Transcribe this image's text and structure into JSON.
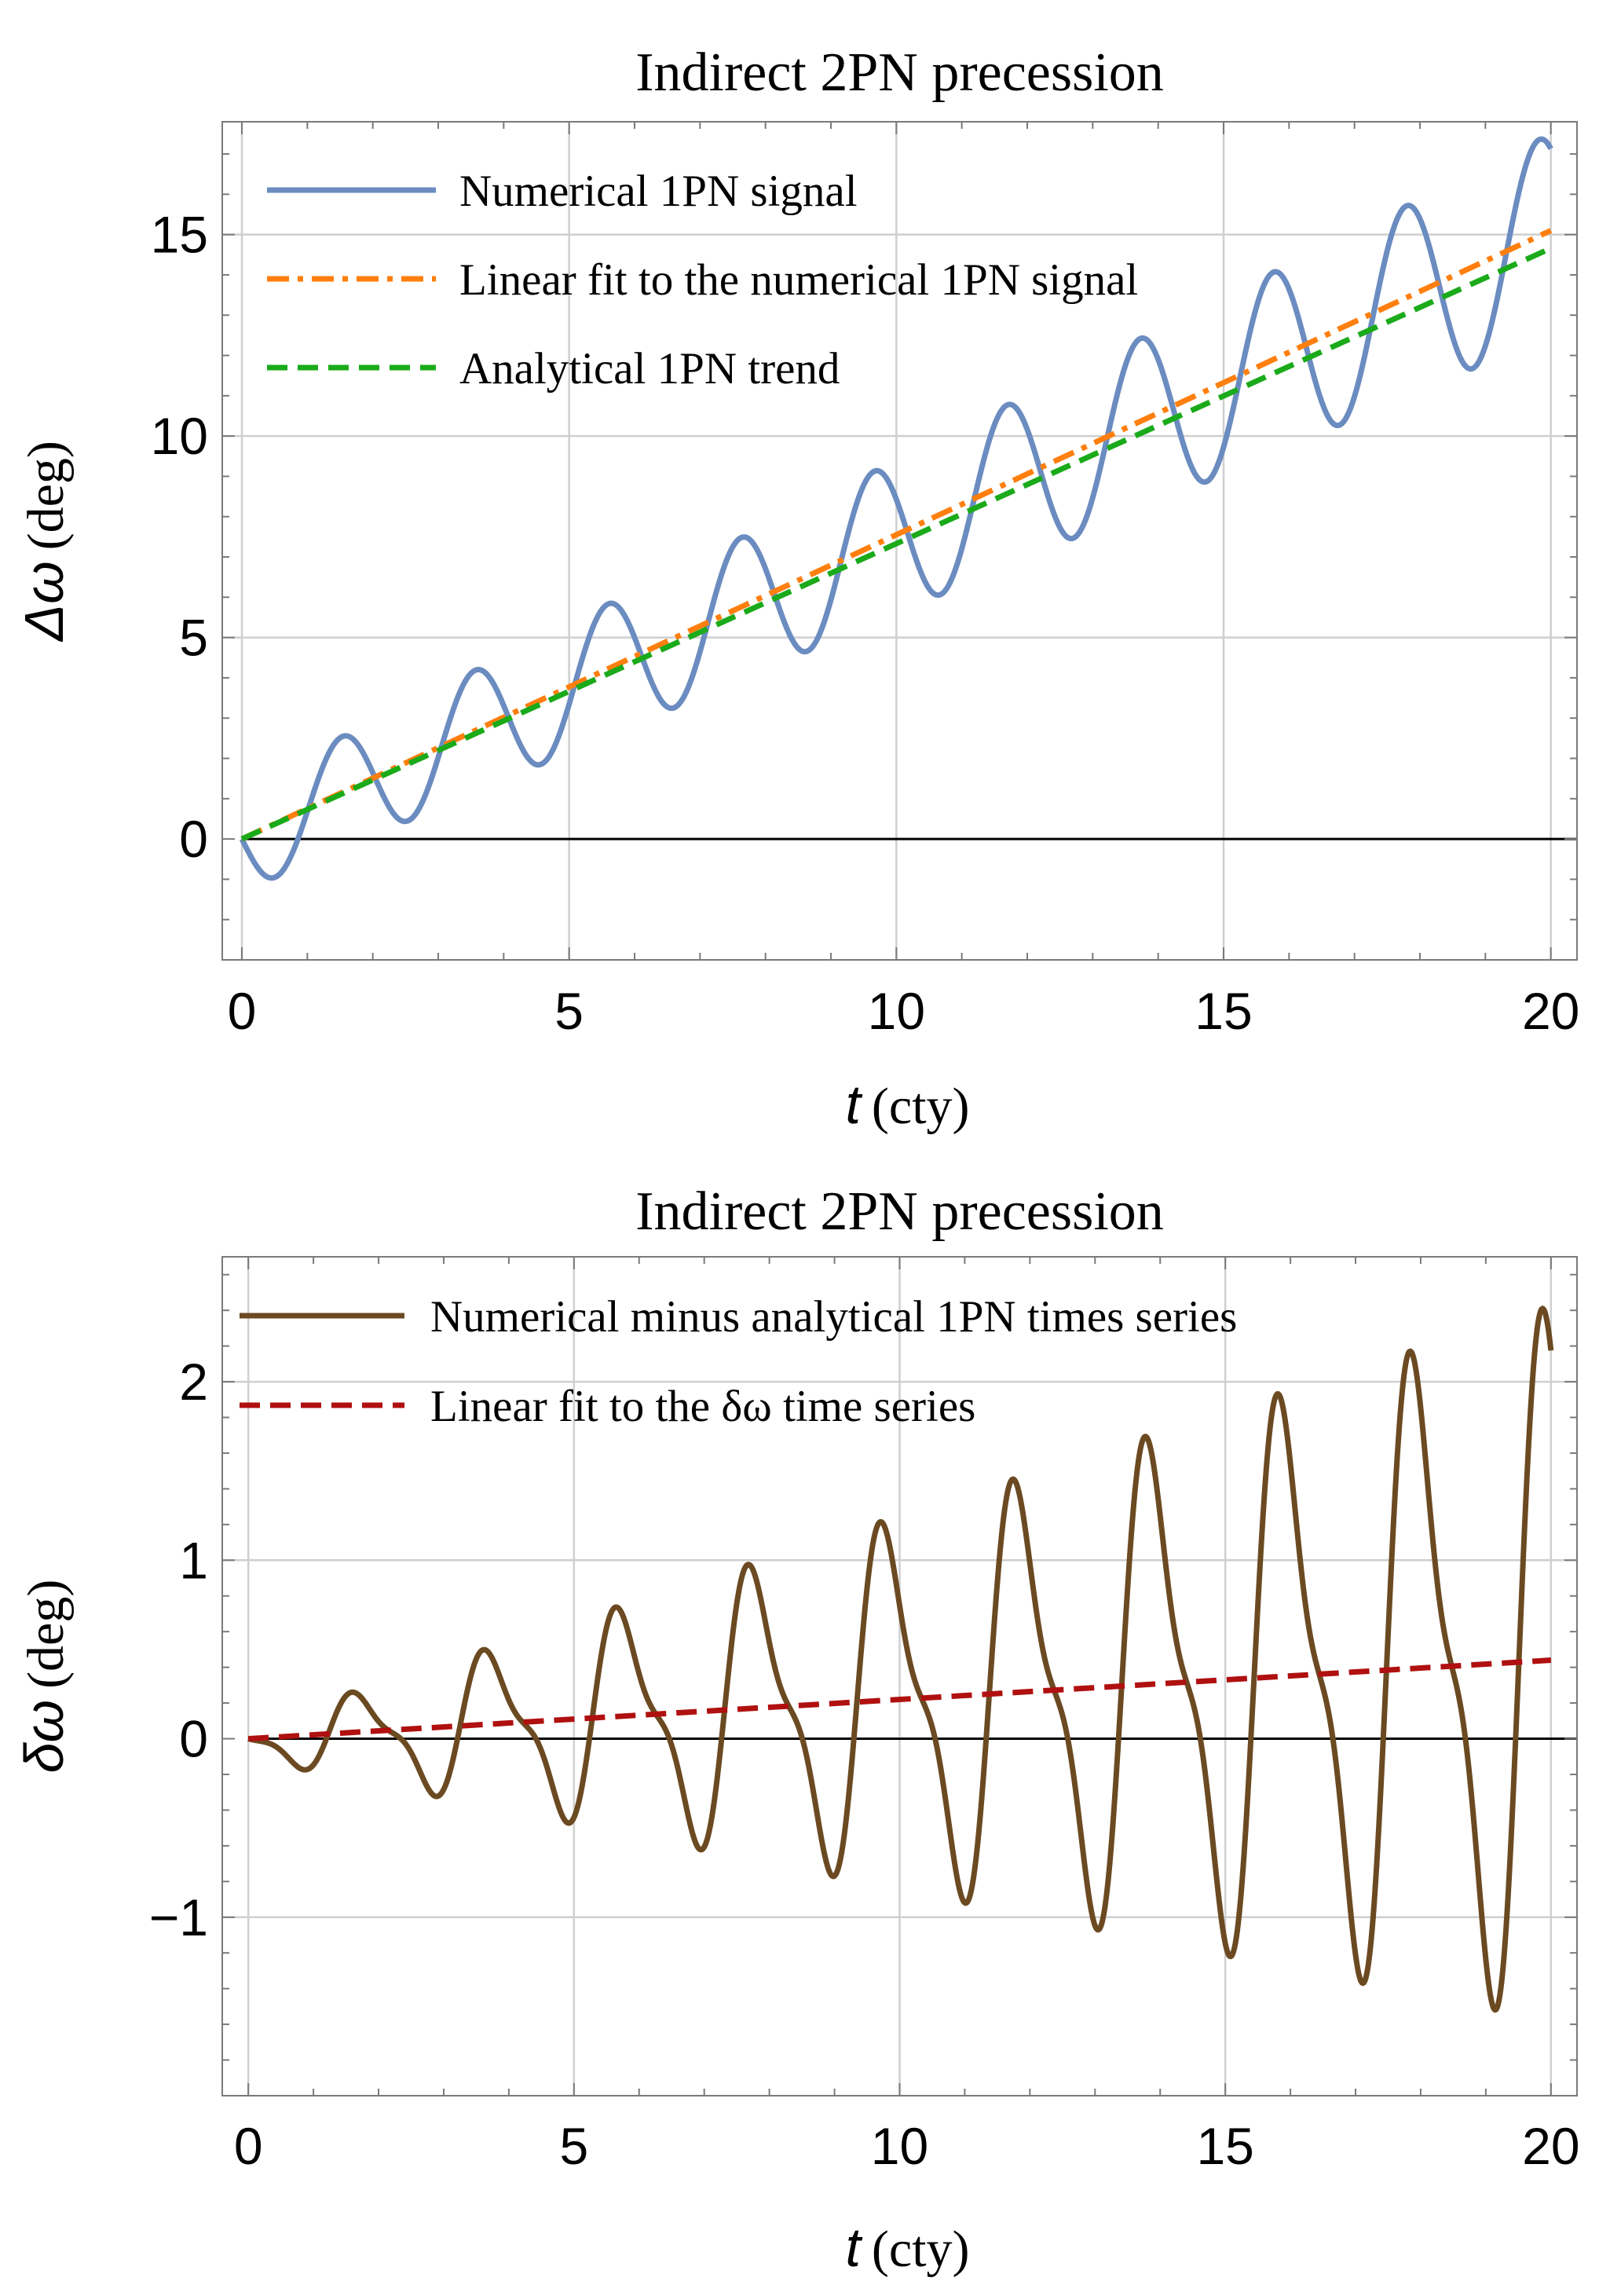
{
  "chart_data": [
    {
      "type": "line",
      "title": "Indirect 2PN precession",
      "xlabel": {
        "symbol": "t",
        "unit": "(cty)"
      },
      "ylabel": {
        "symbol": "Δω",
        "unit": "(deg)"
      },
      "xlim": [
        -0.3,
        20.4
      ],
      "ylim": [
        -3,
        17.8
      ],
      "xticks": [
        0,
        5,
        10,
        15,
        20
      ],
      "xtick_labels": [
        "0",
        "5",
        "10",
        "15",
        "20"
      ],
      "yticks": [
        0,
        5,
        10,
        15
      ],
      "ytick_labels": [
        "0",
        "5",
        "10",
        "15"
      ],
      "grid": true,
      "legend_position": "top-left",
      "series": [
        {
          "name": "Numerical 1PN signal",
          "style": "solid",
          "color": "#6b8cc0",
          "model": {
            "kind": "oscillating",
            "slope": 0.75,
            "amp0": 1.3,
            "amp_growth": 0.06,
            "period": 2.033,
            "phase": 3.1416,
            "skew": 0
          }
        },
        {
          "name": "Linear fit to the numerical 1PN signal",
          "style": "dashdot",
          "color": "#ff7f0e",
          "model": {
            "kind": "linear",
            "slope": 0.755,
            "intercept": 0
          }
        },
        {
          "name": "Analytical 1PN trend",
          "style": "dashed",
          "color": "#1aaa1a",
          "model": {
            "kind": "linear",
            "slope": 0.733,
            "intercept": 0
          }
        }
      ]
    },
    {
      "type": "line",
      "title": "Indirect 2PN precession",
      "xlabel": {
        "symbol": "t",
        "unit": "(cty)"
      },
      "ylabel": {
        "symbol": "δω",
        "unit": "(deg)"
      },
      "xlim": [
        -0.4,
        20.4
      ],
      "ylim": [
        -2.0,
        2.7
      ],
      "xticks": [
        0,
        5,
        10,
        15,
        20
      ],
      "xtick_labels": [
        "0",
        "5",
        "10",
        "15",
        "20"
      ],
      "yticks": [
        -1,
        0,
        1,
        2
      ],
      "ytick_labels": [
        "−1",
        "0",
        "1",
        "2"
      ],
      "grid": true,
      "legend_position": "top-left",
      "series": [
        {
          "name": "Numerical minus analytical 1PN times series",
          "style": "solid",
          "color": "#6b4a22",
          "model": {
            "kind": "oscillating",
            "slope": 0.022,
            "amp0": 0.1,
            "amp_growth": 0.103,
            "period": 2.033,
            "phase": 2.55,
            "skew": 0.7
          }
        },
        {
          "name": "Linear fit to the δω time series",
          "style": "dashed",
          "color": "#b01010",
          "model": {
            "kind": "linear",
            "slope": 0.022,
            "intercept": 0
          }
        }
      ]
    }
  ]
}
